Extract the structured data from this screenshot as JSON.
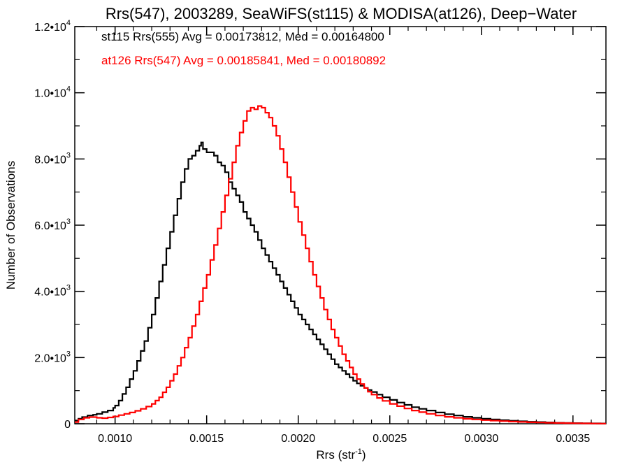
{
  "chart_data": {
    "type": "histogram",
    "title": "Rrs(547), 2003289, SeaWiFS(st115) & MODISA(at126), Deep−Water",
    "xlabel": "Rrs (str",
    "xlabel_sup": "-1",
    "xlabel_close": ")",
    "ylabel": "Number of Observations",
    "xlim": [
      0.00078,
      0.00368
    ],
    "ylim": [
      0,
      12000
    ],
    "x_ticks": [
      {
        "value": 0.001,
        "label": "0.0010"
      },
      {
        "value": 0.0015,
        "label": "0.0015"
      },
      {
        "value": 0.002,
        "label": "0.0020"
      },
      {
        "value": 0.0025,
        "label": "0.0025"
      },
      {
        "value": 0.003,
        "label": "0.0030"
      },
      {
        "value": 0.0035,
        "label": "0.0035"
      }
    ],
    "y_ticks": [
      {
        "value": 0,
        "mant": "0",
        "exp": ""
      },
      {
        "value": 2000,
        "mant": "2.0•10",
        "exp": "3"
      },
      {
        "value": 4000,
        "mant": "4.0•10",
        "exp": "3"
      },
      {
        "value": 6000,
        "mant": "6.0•10",
        "exp": "3"
      },
      {
        "value": 8000,
        "mant": "8.0•10",
        "exp": "3"
      },
      {
        "value": 10000,
        "mant": "1.0•10",
        "exp": "4"
      },
      {
        "value": 12000,
        "mant": "1.2•10",
        "exp": "4"
      }
    ],
    "grid": false,
    "legend_position": "top-left",
    "series": [
      {
        "name": "st115 Rrs(555) Avg = 0.00173812, Med = 0.00164800",
        "color": "#000000",
        "points": [
          [
            0.00078,
            100
          ],
          [
            0.0008,
            150
          ],
          [
            0.00082,
            200
          ],
          [
            0.00085,
            250
          ],
          [
            0.00088,
            270
          ],
          [
            0.0009,
            300
          ],
          [
            0.00093,
            350
          ],
          [
            0.00096,
            400
          ],
          [
            0.00099,
            480
          ],
          [
            0.001,
            550
          ],
          [
            0.00102,
            700
          ],
          [
            0.00104,
            900
          ],
          [
            0.00106,
            1100
          ],
          [
            0.00108,
            1350
          ],
          [
            0.0011,
            1600
          ],
          [
            0.00112,
            1900
          ],
          [
            0.00114,
            2200
          ],
          [
            0.00116,
            2500
          ],
          [
            0.00118,
            2900
          ],
          [
            0.0012,
            3300
          ],
          [
            0.00122,
            3800
          ],
          [
            0.00124,
            4300
          ],
          [
            0.00126,
            4800
          ],
          [
            0.00128,
            5300
          ],
          [
            0.0013,
            5800
          ],
          [
            0.00132,
            6300
          ],
          [
            0.00134,
            6800
          ],
          [
            0.00136,
            7300
          ],
          [
            0.00138,
            7700
          ],
          [
            0.0014,
            8000
          ],
          [
            0.00142,
            8100
          ],
          [
            0.00144,
            8250
          ],
          [
            0.00146,
            8400
          ],
          [
            0.00147,
            8500
          ],
          [
            0.00148,
            8300
          ],
          [
            0.0015,
            8200
          ],
          [
            0.00152,
            8200
          ],
          [
            0.00154,
            8100
          ],
          [
            0.00156,
            7900
          ],
          [
            0.00158,
            7800
          ],
          [
            0.0016,
            7600
          ],
          [
            0.00162,
            7300
          ],
          [
            0.00164,
            7100
          ],
          [
            0.00166,
            6900
          ],
          [
            0.00168,
            6700
          ],
          [
            0.0017,
            6400
          ],
          [
            0.00172,
            6200
          ],
          [
            0.00174,
            6000
          ],
          [
            0.00176,
            5800
          ],
          [
            0.00178,
            5550
          ],
          [
            0.0018,
            5300
          ],
          [
            0.00182,
            5100
          ],
          [
            0.00184,
            4900
          ],
          [
            0.00186,
            4700
          ],
          [
            0.00188,
            4500
          ],
          [
            0.0019,
            4300
          ],
          [
            0.00192,
            4100
          ],
          [
            0.00194,
            3900
          ],
          [
            0.00196,
            3700
          ],
          [
            0.00198,
            3500
          ],
          [
            0.002,
            3300
          ],
          [
            0.00202,
            3150
          ],
          [
            0.00204,
            3000
          ],
          [
            0.00206,
            2850
          ],
          [
            0.00208,
            2700
          ],
          [
            0.0021,
            2550
          ],
          [
            0.00212,
            2400
          ],
          [
            0.00214,
            2250
          ],
          [
            0.00216,
            2100
          ],
          [
            0.00218,
            1950
          ],
          [
            0.0022,
            1800
          ],
          [
            0.00222,
            1700
          ],
          [
            0.00224,
            1600
          ],
          [
            0.00226,
            1500
          ],
          [
            0.00228,
            1400
          ],
          [
            0.0023,
            1300
          ],
          [
            0.00232,
            1220
          ],
          [
            0.00234,
            1150
          ],
          [
            0.00236,
            1080
          ],
          [
            0.00238,
            1020
          ],
          [
            0.0024,
            960
          ],
          [
            0.00243,
            880
          ],
          [
            0.00246,
            800
          ],
          [
            0.0025,
            720
          ],
          [
            0.00254,
            640
          ],
          [
            0.00258,
            570
          ],
          [
            0.00262,
            500
          ],
          [
            0.00266,
            450
          ],
          [
            0.0027,
            400
          ],
          [
            0.00275,
            340
          ],
          [
            0.0028,
            290
          ],
          [
            0.00285,
            250
          ],
          [
            0.0029,
            210
          ],
          [
            0.00295,
            180
          ],
          [
            0.003,
            150
          ],
          [
            0.00305,
            130
          ],
          [
            0.0031,
            110
          ],
          [
            0.00315,
            90
          ],
          [
            0.0032,
            75
          ],
          [
            0.00325,
            60
          ],
          [
            0.0033,
            50
          ],
          [
            0.00335,
            40
          ],
          [
            0.0034,
            30
          ],
          [
            0.00345,
            25
          ],
          [
            0.0035,
            20
          ],
          [
            0.00355,
            15
          ],
          [
            0.0036,
            10
          ],
          [
            0.00365,
            8
          ],
          [
            0.00368,
            5
          ]
        ]
      },
      {
        "name": "at126 Rrs(547) Avg = 0.00185841, Med = 0.00180892",
        "color": "#ff0000",
        "points": [
          [
            0.00078,
            50
          ],
          [
            0.0008,
            130
          ],
          [
            0.00083,
            180
          ],
          [
            0.00086,
            200
          ],
          [
            0.0009,
            180
          ],
          [
            0.00093,
            170
          ],
          [
            0.00096,
            190
          ],
          [
            0.00099,
            220
          ],
          [
            0.00102,
            260
          ],
          [
            0.00105,
            300
          ],
          [
            0.00108,
            340
          ],
          [
            0.00111,
            390
          ],
          [
            0.00114,
            450
          ],
          [
            0.00117,
            520
          ],
          [
            0.0012,
            600
          ],
          [
            0.00122,
            700
          ],
          [
            0.00124,
            800
          ],
          [
            0.00126,
            950
          ],
          [
            0.00128,
            1100
          ],
          [
            0.0013,
            1300
          ],
          [
            0.00132,
            1500
          ],
          [
            0.00134,
            1750
          ],
          [
            0.00136,
            2000
          ],
          [
            0.00138,
            2300
          ],
          [
            0.0014,
            2600
          ],
          [
            0.00142,
            2950
          ],
          [
            0.00144,
            3300
          ],
          [
            0.00146,
            3700
          ],
          [
            0.00148,
            4100
          ],
          [
            0.0015,
            4500
          ],
          [
            0.00152,
            4950
          ],
          [
            0.00154,
            5400
          ],
          [
            0.00156,
            5900
          ],
          [
            0.00158,
            6400
          ],
          [
            0.0016,
            6900
          ],
          [
            0.00162,
            7400
          ],
          [
            0.00164,
            7900
          ],
          [
            0.00166,
            8400
          ],
          [
            0.00168,
            8800
          ],
          [
            0.0017,
            9150
          ],
          [
            0.00172,
            9450
          ],
          [
            0.00174,
            9550
          ],
          [
            0.00176,
            9500
          ],
          [
            0.00178,
            9600
          ],
          [
            0.0018,
            9550
          ],
          [
            0.00182,
            9400
          ],
          [
            0.00184,
            9250
          ],
          [
            0.00186,
            9000
          ],
          [
            0.00188,
            8700
          ],
          [
            0.0019,
            8300
          ],
          [
            0.00192,
            7900
          ],
          [
            0.00194,
            7450
          ],
          [
            0.00196,
            7000
          ],
          [
            0.00198,
            6550
          ],
          [
            0.002,
            6100
          ],
          [
            0.00202,
            5700
          ],
          [
            0.00204,
            5300
          ],
          [
            0.00206,
            4900
          ],
          [
            0.00208,
            4500
          ],
          [
            0.0021,
            4150
          ],
          [
            0.00212,
            3800
          ],
          [
            0.00214,
            3450
          ],
          [
            0.00216,
            3150
          ],
          [
            0.00218,
            2850
          ],
          [
            0.0022,
            2600
          ],
          [
            0.00222,
            2350
          ],
          [
            0.00224,
            2100
          ],
          [
            0.00226,
            1900
          ],
          [
            0.00228,
            1700
          ],
          [
            0.0023,
            1500
          ],
          [
            0.00232,
            1350
          ],
          [
            0.00234,
            1200
          ],
          [
            0.00236,
            1080
          ],
          [
            0.00238,
            970
          ],
          [
            0.0024,
            880
          ],
          [
            0.00243,
            780
          ],
          [
            0.00246,
            690
          ],
          [
            0.0025,
            600
          ],
          [
            0.00254,
            530
          ],
          [
            0.00258,
            460
          ],
          [
            0.00262,
            400
          ],
          [
            0.00266,
            350
          ],
          [
            0.0027,
            300
          ],
          [
            0.00275,
            250
          ],
          [
            0.0028,
            210
          ],
          [
            0.00285,
            180
          ],
          [
            0.0029,
            150
          ],
          [
            0.00295,
            130
          ],
          [
            0.003,
            110
          ],
          [
            0.00305,
            95
          ],
          [
            0.0031,
            80
          ],
          [
            0.00315,
            65
          ],
          [
            0.0032,
            55
          ],
          [
            0.00325,
            45
          ],
          [
            0.0033,
            38
          ],
          [
            0.00335,
            30
          ],
          [
            0.0034,
            24
          ],
          [
            0.00345,
            18
          ],
          [
            0.0035,
            14
          ],
          [
            0.00355,
            10
          ],
          [
            0.0036,
            7
          ],
          [
            0.00365,
            5
          ],
          [
            0.00368,
            3
          ]
        ]
      }
    ]
  }
}
